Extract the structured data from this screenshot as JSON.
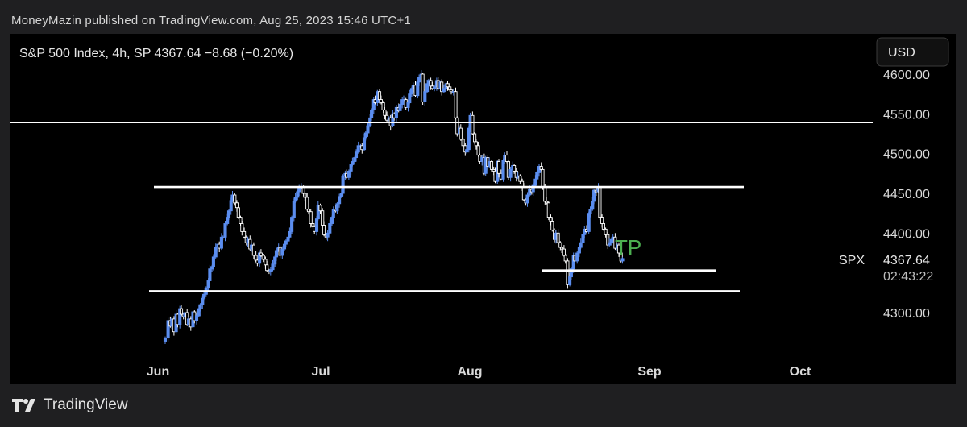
{
  "header": {
    "published": "MoneyMazin published on TradingView.com, Aug 25, 2023 15:46 UTC+1"
  },
  "footer": {
    "brand": "TradingView"
  },
  "chart_data": {
    "type": "candlestick",
    "title": "S&P 500 Index, 4h, SP  4367.64  −8.68 (−0.20%)",
    "currency": "USD",
    "symbol": "SPX",
    "last_price": 4367.64,
    "last_price_label": "4367.64",
    "countdown": "02:43:22",
    "y_ticks": [
      "4600.00",
      "4550.00",
      "4500.00",
      "4450.00",
      "4400.00",
      "4300.00"
    ],
    "x_ticks": [
      "Jun",
      "Jul",
      "Aug",
      "Sep",
      "Oct"
    ],
    "ylim": [
      4255,
      4612
    ],
    "annotation": "TP",
    "horizontal_levels": [
      4539,
      4458,
      4353,
      4327
    ],
    "colors": {
      "up": "#5b8def",
      "down": "#ffffff",
      "lines": "#ffffff",
      "annotation": "#4caf50",
      "axis_text": "#d9d9d9"
    },
    "path": [
      [
        0,
        4268
      ],
      [
        4,
        4290
      ],
      [
        7,
        4283
      ],
      [
        9,
        4292
      ],
      [
        12,
        4276
      ],
      [
        15,
        4298
      ],
      [
        17,
        4285
      ],
      [
        20,
        4305
      ],
      [
        22,
        4298
      ],
      [
        25,
        4295
      ],
      [
        27,
        4300
      ],
      [
        30,
        4285
      ],
      [
        32,
        4292
      ],
      [
        35,
        4282
      ],
      [
        38,
        4301
      ],
      [
        40,
        4290
      ],
      [
        43,
        4296
      ],
      [
        46,
        4305
      ],
      [
        48,
        4310
      ],
      [
        51,
        4318
      ],
      [
        53,
        4323
      ],
      [
        56,
        4331
      ],
      [
        59,
        4340
      ],
      [
        61,
        4355
      ],
      [
        64,
        4358
      ],
      [
        66,
        4370
      ],
      [
        69,
        4382
      ],
      [
        72,
        4386
      ],
      [
        74,
        4381
      ],
      [
        77,
        4395
      ],
      [
        79,
        4395
      ],
      [
        82,
        4412
      ],
      [
        85,
        4420
      ],
      [
        87,
        4428
      ],
      [
        90,
        4441
      ],
      [
        92,
        4448
      ],
      [
        95,
        4438
      ],
      [
        98,
        4432
      ],
      [
        100,
        4420
      ],
      [
        103,
        4412
      ],
      [
        105,
        4402
      ],
      [
        108,
        4395
      ],
      [
        111,
        4388
      ],
      [
        113,
        4392
      ],
      [
        116,
        4380
      ],
      [
        118,
        4385
      ],
      [
        121,
        4372
      ],
      [
        124,
        4366
      ],
      [
        126,
        4362
      ],
      [
        129,
        4375
      ],
      [
        131,
        4372
      ],
      [
        134,
        4367
      ],
      [
        137,
        4360
      ],
      [
        139,
        4353
      ],
      [
        142,
        4352
      ],
      [
        144,
        4354
      ],
      [
        147,
        4361
      ],
      [
        150,
        4370
      ],
      [
        152,
        4378
      ],
      [
        155,
        4382
      ],
      [
        157,
        4372
      ],
      [
        160,
        4380
      ],
      [
        163,
        4386
      ],
      [
        165,
        4390
      ],
      [
        168,
        4395
      ],
      [
        170,
        4402
      ],
      [
        173,
        4420
      ],
      [
        176,
        4440
      ],
      [
        178,
        4445
      ],
      [
        181,
        4452
      ],
      [
        183,
        4457
      ],
      [
        186,
        4458
      ],
      [
        189,
        4450
      ],
      [
        191,
        4445
      ],
      [
        194,
        4430
      ],
      [
        196,
        4427
      ],
      [
        199,
        4412
      ],
      [
        202,
        4408
      ],
      [
        204,
        4402
      ],
      [
        207,
        4418
      ],
      [
        209,
        4435
      ],
      [
        212,
        4428
      ],
      [
        215,
        4410
      ],
      [
        217,
        4398
      ],
      [
        220,
        4395
      ],
      [
        222,
        4400
      ],
      [
        225,
        4412
      ],
      [
        228,
        4420
      ],
      [
        230,
        4430
      ],
      [
        233,
        4428
      ],
      [
        235,
        4437
      ],
      [
        238,
        4446
      ],
      [
        241,
        4450
      ],
      [
        243,
        4472
      ],
      [
        246,
        4475
      ],
      [
        248,
        4470
      ],
      [
        251,
        4478
      ],
      [
        254,
        4486
      ],
      [
        256,
        4490
      ],
      [
        259,
        4495
      ],
      [
        261,
        4502
      ],
      [
        264,
        4510
      ],
      [
        267,
        4510
      ],
      [
        269,
        4505
      ],
      [
        272,
        4520
      ],
      [
        274,
        4526
      ],
      [
        277,
        4535
      ],
      [
        280,
        4545
      ],
      [
        282,
        4555
      ],
      [
        285,
        4568
      ],
      [
        287,
        4564
      ],
      [
        290,
        4578
      ],
      [
        293,
        4568
      ],
      [
        295,
        4564
      ],
      [
        298,
        4555
      ],
      [
        300,
        4548
      ],
      [
        303,
        4542
      ],
      [
        306,
        4545
      ],
      [
        308,
        4535
      ],
      [
        311,
        4550
      ],
      [
        313,
        4545
      ],
      [
        316,
        4558
      ],
      [
        319,
        4554
      ],
      [
        321,
        4562
      ],
      [
        324,
        4568
      ],
      [
        326,
        4568
      ],
      [
        329,
        4558
      ],
      [
        332,
        4564
      ],
      [
        334,
        4575
      ],
      [
        337,
        4582
      ],
      [
        339,
        4586
      ],
      [
        342,
        4573
      ],
      [
        345,
        4590
      ],
      [
        347,
        4596
      ],
      [
        350,
        4600
      ],
      [
        352,
        4565
      ],
      [
        355,
        4578
      ],
      [
        358,
        4588
      ],
      [
        360,
        4592
      ],
      [
        363,
        4585
      ],
      [
        365,
        4582
      ],
      [
        368,
        4584
      ],
      [
        371,
        4592
      ],
      [
        373,
        4582
      ],
      [
        376,
        4590
      ],
      [
        378,
        4578
      ],
      [
        381,
        4582
      ],
      [
        384,
        4588
      ],
      [
        386,
        4584
      ],
      [
        389,
        4580
      ],
      [
        391,
        4578
      ],
      [
        394,
        4578
      ],
      [
        397,
        4545
      ],
      [
        399,
        4525
      ],
      [
        402,
        4532
      ],
      [
        404,
        4518
      ],
      [
        407,
        4510
      ],
      [
        410,
        4502
      ],
      [
        412,
        4505
      ],
      [
        415,
        4532
      ],
      [
        417,
        4548
      ],
      [
        420,
        4525
      ],
      [
        423,
        4515
      ],
      [
        425,
        4510
      ],
      [
        428,
        4498
      ],
      [
        430,
        4490
      ],
      [
        433,
        4495
      ],
      [
        436,
        4475
      ],
      [
        438,
        4495
      ],
      [
        441,
        4484
      ],
      [
        443,
        4490
      ],
      [
        446,
        4480
      ],
      [
        449,
        4478
      ],
      [
        451,
        4465
      ],
      [
        454,
        4490
      ],
      [
        456,
        4475
      ],
      [
        459,
        4468
      ],
      [
        462,
        4492
      ],
      [
        464,
        4498
      ],
      [
        467,
        4490
      ],
      [
        469,
        4470
      ],
      [
        472,
        4480
      ],
      [
        475,
        4485
      ],
      [
        477,
        4478
      ],
      [
        480,
        4470
      ],
      [
        482,
        4472
      ],
      [
        485,
        4465
      ],
      [
        488,
        4458
      ],
      [
        490,
        4442
      ],
      [
        493,
        4438
      ],
      [
        495,
        4448
      ],
      [
        498,
        4455
      ],
      [
        501,
        4452
      ],
      [
        503,
        4460
      ],
      [
        506,
        4468
      ],
      [
        508,
        4476
      ],
      [
        511,
        4484
      ],
      [
        514,
        4480
      ],
      [
        516,
        4458
      ],
      [
        519,
        4440
      ],
      [
        521,
        4438
      ],
      [
        524,
        4420
      ],
      [
        527,
        4415
      ],
      [
        529,
        4404
      ],
      [
        532,
        4392
      ],
      [
        534,
        4400
      ],
      [
        537,
        4388
      ],
      [
        540,
        4382
      ],
      [
        542,
        4380
      ],
      [
        545,
        4372
      ],
      [
        547,
        4365
      ],
      [
        550,
        4335
      ],
      [
        553,
        4345
      ],
      [
        555,
        4355
      ],
      [
        558,
        4372
      ],
      [
        560,
        4365
      ],
      [
        563,
        4375
      ],
      [
        566,
        4382
      ],
      [
        568,
        4388
      ],
      [
        571,
        4398
      ],
      [
        573,
        4405
      ],
      [
        576,
        4402
      ],
      [
        579,
        4425
      ],
      [
        581,
        4430
      ],
      [
        584,
        4440
      ],
      [
        586,
        4454
      ],
      [
        589,
        4452
      ],
      [
        592,
        4458
      ],
      [
        594,
        4420
      ],
      [
        597,
        4412
      ],
      [
        599,
        4405
      ],
      [
        602,
        4398
      ],
      [
        605,
        4385
      ],
      [
        607,
        4388
      ],
      [
        610,
        4392
      ],
      [
        612,
        4395
      ],
      [
        615,
        4381
      ],
      [
        618,
        4385
      ],
      [
        620,
        4375
      ],
      [
        623,
        4365
      ],
      [
        625,
        4368
      ]
    ]
  }
}
